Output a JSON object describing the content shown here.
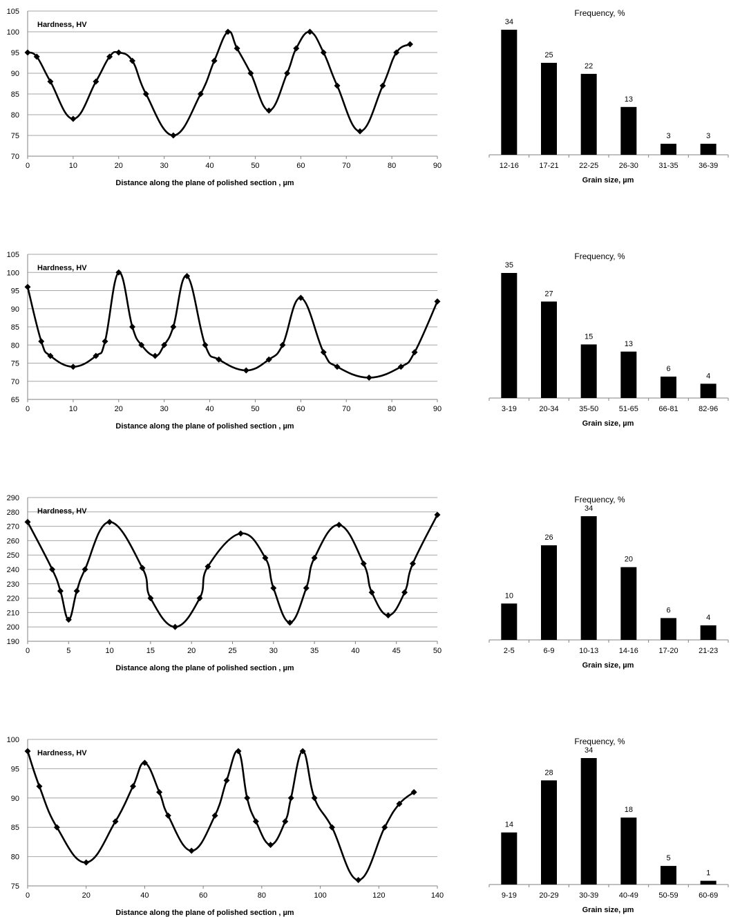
{
  "chart_data": [
    {
      "type": "line",
      "inner_label": "Hardness, HV",
      "xlabel": "Distance  along the plane of polished section , µm",
      "xlim": [
        0,
        90
      ],
      "xstep": 10,
      "ylim": [
        70,
        105
      ],
      "ystep": 5,
      "grid": true,
      "markers": "diamond",
      "x": [
        0,
        2,
        5,
        10,
        15,
        18,
        20,
        23,
        26,
        32,
        38,
        41,
        44,
        46,
        49,
        53,
        57,
        59,
        62,
        65,
        68,
        73,
        78,
        81,
        84
      ],
      "y": [
        95,
        94,
        88,
        79,
        88,
        94,
        95,
        93,
        85,
        75,
        85,
        93,
        100,
        96,
        90,
        81,
        90,
        96,
        100,
        95,
        87,
        76,
        87,
        95,
        97
      ]
    },
    {
      "type": "bar",
      "title": "Frequency, %",
      "xlabel": "Grain size, µm",
      "categories": [
        "12-16",
        "17-21",
        "22-25",
        "26-30",
        "31-35",
        "36-39"
      ],
      "values": [
        34,
        25,
        22,
        13,
        3,
        3
      ],
      "ylim": [
        0,
        34
      ],
      "data_labels": true
    },
    {
      "type": "line",
      "inner_label": "Hardness, HV",
      "xlabel": "Distance  along the plane of polished section , µm",
      "xlim": [
        0,
        90
      ],
      "xstep": 10,
      "ylim": [
        65,
        105
      ],
      "ystep": 5,
      "grid": true,
      "markers": "diamond",
      "x": [
        0,
        3,
        5,
        10,
        15,
        17,
        20,
        23,
        25,
        28,
        30,
        32,
        35,
        39,
        42,
        48,
        53,
        56,
        60,
        65,
        68,
        75,
        82,
        85,
        90
      ],
      "y": [
        96,
        81,
        77,
        74,
        77,
        81,
        100,
        85,
        80,
        77,
        80,
        85,
        99,
        80,
        76,
        73,
        76,
        80,
        93,
        78,
        74,
        71,
        74,
        78,
        92
      ]
    },
    {
      "type": "bar",
      "title": "Frequency, %",
      "xlabel": "Grain size, µm",
      "categories": [
        "3-19",
        "20-34",
        "35-50",
        "51-65",
        "66-81",
        "82-96"
      ],
      "values": [
        35,
        27,
        15,
        13,
        6,
        4
      ],
      "ylim": [
        0,
        35
      ],
      "data_labels": true
    },
    {
      "type": "line",
      "inner_label": "Hardness, HV",
      "xlabel": "Distance  along the plane of polished section , µm",
      "xlim": [
        0,
        50
      ],
      "xstep": 5,
      "ylim": [
        190,
        290
      ],
      "ystep": 10,
      "grid": true,
      "markers": "diamond",
      "x": [
        0,
        3,
        4,
        5,
        6,
        7,
        10,
        14,
        15,
        18,
        21,
        22,
        26,
        29,
        30,
        32,
        34,
        35,
        38,
        41,
        42,
        44,
        46,
        47,
        50
      ],
      "y": [
        273,
        240,
        225,
        205,
        225,
        240,
        273,
        241,
        220,
        200,
        220,
        242,
        265,
        248,
        227,
        203,
        227,
        248,
        271,
        244,
        224,
        208,
        224,
        244,
        278
      ]
    },
    {
      "type": "bar",
      "title": "Frequency, %",
      "xlabel": "Grain size, µm",
      "categories": [
        "2-5",
        "6-9",
        "10-13",
        "14-16",
        "17-20",
        "21-23"
      ],
      "values": [
        10,
        26,
        34,
        20,
        6,
        4
      ],
      "ylim": [
        0,
        34
      ],
      "data_labels": true
    },
    {
      "type": "line",
      "inner_label": "Hardness, HV",
      "xlabel": "Distance  along the plane of polished section , µm",
      "xlim": [
        0,
        140
      ],
      "xstep": 20,
      "ylim": [
        75,
        100
      ],
      "ystep": 5,
      "grid": true,
      "markers": "diamond",
      "x": [
        0,
        4,
        10,
        20,
        30,
        36,
        40,
        45,
        48,
        56,
        64,
        68,
        72,
        75,
        78,
        83,
        88,
        90,
        94,
        98,
        104,
        113,
        122,
        127,
        132
      ],
      "y": [
        98,
        92,
        85,
        79,
        86,
        92,
        96,
        91,
        87,
        81,
        87,
        93,
        98,
        90,
        86,
        82,
        86,
        90,
        98,
        90,
        85,
        76,
        85,
        89,
        91
      ]
    },
    {
      "type": "bar",
      "title": "Frequency, %",
      "xlabel": "Grain size, µm",
      "categories": [
        "9-19",
        "20-29",
        "30-39",
        "40-49",
        "50-59",
        "60-69"
      ],
      "values": [
        14,
        28,
        34,
        18,
        5,
        1
      ],
      "ylim": [
        0,
        34
      ],
      "data_labels": true
    }
  ]
}
